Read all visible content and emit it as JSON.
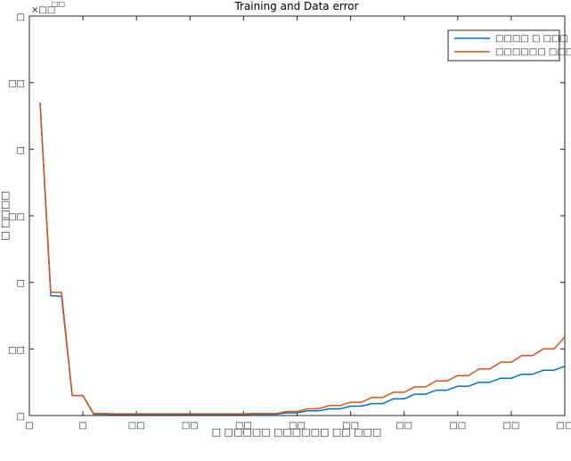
{
  "chart_data": {
    "type": "line",
    "title": "Training and Data error",
    "xlabel": "□ □□□□□ □□□□□□ □□ □□□",
    "ylabel": "□ □□□□",
    "exponent_label": "×□□",
    "exponent_power": "□□",
    "xlim": [
      0,
      50
    ],
    "ylim": [
      0,
      6
    ],
    "x_ticks": [
      0,
      5,
      10,
      15,
      20,
      25,
      30,
      35,
      40,
      45,
      50
    ],
    "x_tick_labels": [
      "□",
      "□",
      "□□",
      "□□",
      "□□",
      "□□",
      "□□",
      "□□",
      "□□",
      "□□",
      "□□"
    ],
    "y_ticks": [
      0,
      1,
      2,
      3,
      4,
      5,
      6
    ],
    "y_tick_labels": [
      "□",
      "□□",
      "□",
      "□□",
      "□",
      "□□",
      "□"
    ],
    "grid": false,
    "legend_position": "top-right",
    "series": [
      {
        "name": "□□□□ □ □□□",
        "color": "#0072BD",
        "x": [
          1,
          2,
          3,
          4,
          5,
          6,
          7,
          8,
          9,
          10,
          11,
          12,
          13,
          14,
          15,
          16,
          17,
          18,
          19,
          20,
          21,
          22,
          23,
          24,
          25,
          26,
          27,
          28,
          29,
          30,
          31,
          32,
          33,
          34,
          35,
          36,
          37,
          38,
          39,
          40,
          41,
          42,
          43,
          44,
          45,
          46,
          47,
          48,
          49,
          50
        ],
        "y": [
          4.7,
          1.8,
          1.79,
          0.3,
          0.3,
          0.02,
          0.02,
          0.015,
          0.015,
          0.015,
          0.015,
          0.015,
          0.015,
          0.015,
          0.015,
          0.015,
          0.015,
          0.015,
          0.015,
          0.015,
          0.02,
          0.02,
          0.02,
          0.04,
          0.04,
          0.07,
          0.07,
          0.1,
          0.1,
          0.14,
          0.14,
          0.18,
          0.18,
          0.25,
          0.25,
          0.32,
          0.32,
          0.38,
          0.38,
          0.44,
          0.44,
          0.5,
          0.5,
          0.56,
          0.56,
          0.62,
          0.62,
          0.68,
          0.68,
          0.74
        ]
      },
      {
        "name": "□□□□□□ □□□",
        "color": "#D95319",
        "x": [
          1,
          2,
          3,
          4,
          5,
          6,
          7,
          8,
          9,
          10,
          11,
          12,
          13,
          14,
          15,
          16,
          17,
          18,
          19,
          20,
          21,
          22,
          23,
          24,
          25,
          26,
          27,
          28,
          29,
          30,
          31,
          32,
          33,
          34,
          35,
          36,
          37,
          38,
          39,
          40,
          41,
          42,
          43,
          44,
          45,
          46,
          47,
          48,
          49,
          50
        ],
        "y": [
          4.7,
          1.85,
          1.85,
          0.3,
          0.3,
          0.03,
          0.03,
          0.025,
          0.025,
          0.025,
          0.025,
          0.025,
          0.025,
          0.025,
          0.025,
          0.025,
          0.025,
          0.025,
          0.025,
          0.025,
          0.03,
          0.03,
          0.03,
          0.06,
          0.06,
          0.1,
          0.1,
          0.15,
          0.15,
          0.2,
          0.2,
          0.27,
          0.27,
          0.35,
          0.35,
          0.43,
          0.43,
          0.52,
          0.52,
          0.6,
          0.6,
          0.7,
          0.7,
          0.8,
          0.8,
          0.9,
          0.9,
          1.0,
          1.0,
          1.18
        ]
      }
    ]
  }
}
